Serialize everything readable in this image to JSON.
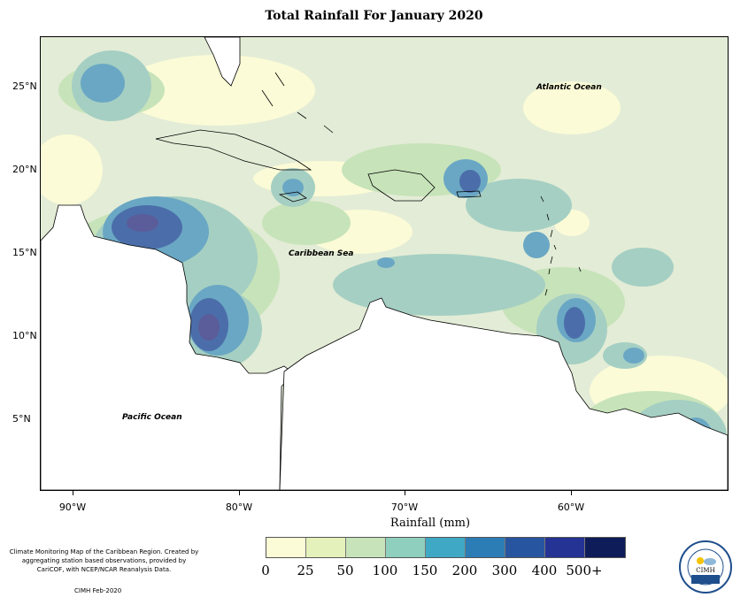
{
  "title": "Total Rainfall For January 2020",
  "latitude_labels": [
    "25°N",
    "20°N",
    "15°N",
    "10°N",
    "5°N"
  ],
  "longitude_labels": [
    "90°W",
    "80°W",
    "70°W",
    "60°W"
  ],
  "x_axis_title": "Rainfall (mm)",
  "ocean_labels": {
    "atlantic": "Atlantic Ocean",
    "caribbean": "Caribbean Sea",
    "pacific": "Pacific Ocean"
  },
  "legend": {
    "labels": [
      "0",
      "25",
      "50",
      "100",
      "150",
      "200",
      "300",
      "400",
      "500+"
    ],
    "colors": [
      "#fbfbd7",
      "#e4f1ba",
      "#c7e3b9",
      "#8ecfbd",
      "#3fa9c5",
      "#2c7cb5",
      "#2855a0",
      "#253394",
      "#0e1c59"
    ]
  },
  "note": "Climate Monitoring Map of the Caribbean Region. Created by aggregating station based observations, provided by CariCOF, with NCEP/NCAR Reanalysis Data.",
  "credit": "CIMH Feb-2020",
  "logo_text": "CIMH",
  "rainfall_colors": {
    "light": "#fbfbd7",
    "pale_green": "#e3ecd6",
    "green": "#c7e3b9",
    "teal": "#a5cfc3",
    "blue": "#6aa7c4",
    "deep_blue": "#4b6eaa",
    "purple": "#5a5d99"
  }
}
